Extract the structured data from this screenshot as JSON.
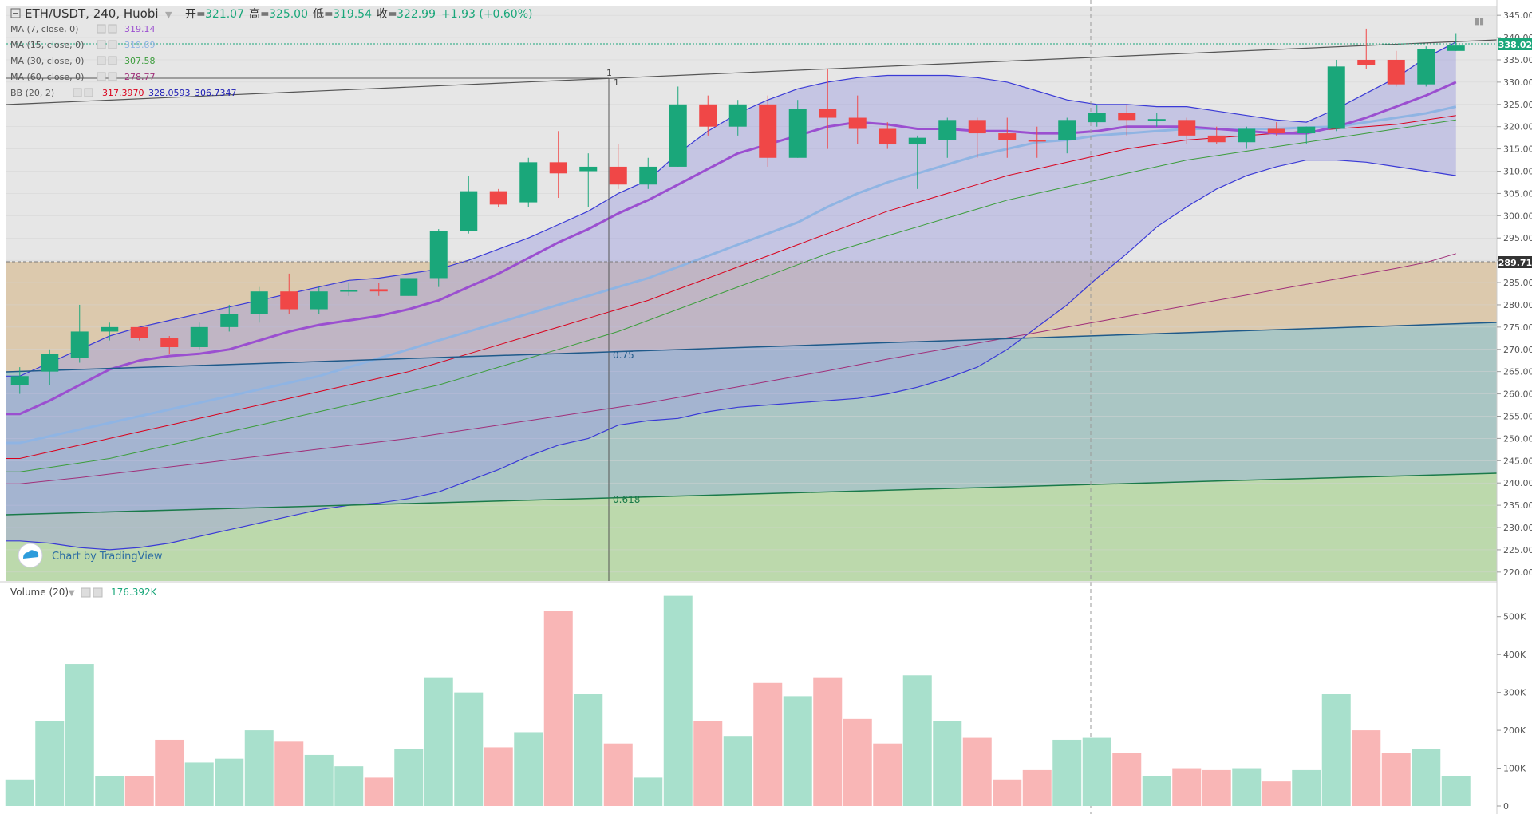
{
  "header": {
    "symbol": "ETH/USDT, 240, Huobi",
    "open_label": "开=",
    "open": "321.07",
    "high_label": "高=",
    "high": "325.00",
    "low_label": "低=",
    "low": "319.54",
    "close_label": "收=",
    "close": "322.99",
    "change": "+1.93 (+0.60%)"
  },
  "indicators": [
    {
      "label": "MA (7, close, 0)",
      "value": "319.14",
      "color": "#9b4fd0"
    },
    {
      "label": "MA (15, close, 0)",
      "value": "319.89",
      "color": "#8fb4e3"
    },
    {
      "label": "MA (30, close, 0)",
      "value": "307.58",
      "color": "#3c9d3c"
    },
    {
      "label": "MA (60, close, 0)",
      "value": "278.77",
      "color": "#a0307a"
    }
  ],
  "bb": {
    "label": "BB (20, 2)",
    "values": [
      "317.3970",
      "328.0593",
      "306.7347"
    ],
    "colors": [
      "#d9001b",
      "#1a1ab3",
      "#1a1ab3"
    ]
  },
  "volume": {
    "label": "Volume (20)",
    "value": "176.392K"
  },
  "watermark": "Chart by TradingView",
  "colors": {
    "up": "#1aa77a",
    "down": "#f04747",
    "up_vol": "#a8e0cc",
    "down_vol": "#f9b6b6",
    "bb_fill": "#b9b9e6",
    "ma7": "#9b4fd0",
    "ma15": "#8fb4e3",
    "ma30": "#3c9d3c",
    "ma60": "#a0307a",
    "bb_mid": "#d9001b",
    "bb_band": "#3a3ad6"
  },
  "price_labels": {
    "last": "338.02",
    "line": "289.71"
  },
  "fib_labels": {
    "top": "1",
    "top2": "1",
    "mid": "0.75",
    "low": "0.618"
  },
  "chart_data": {
    "type": "candlestick",
    "price_axis": {
      "ticks": [
        "345.00",
        "340.00",
        "335.00",
        "330.00",
        "325.00",
        "320.00",
        "315.00",
        "310.00",
        "305.00",
        "300.00",
        "295.00",
        "290.00",
        "285.00",
        "280.00",
        "275.00",
        "270.00",
        "265.00",
        "260.00",
        "255.00",
        "250.00",
        "245.00",
        "240.00",
        "235.00",
        "230.00",
        "225.00",
        "220.00"
      ],
      "ylim": [
        218,
        347
      ]
    },
    "volume_axis": {
      "ticks": [
        "500K",
        "400K",
        "300K",
        "200K",
        "100K",
        "0"
      ],
      "ylim": [
        0,
        550
      ]
    },
    "candles": [
      {
        "o": 262,
        "h": 266,
        "l": 260,
        "c": 264
      },
      {
        "o": 265,
        "h": 270,
        "l": 262,
        "c": 269
      },
      {
        "o": 268,
        "h": 280,
        "l": 267,
        "c": 274
      },
      {
        "o": 274,
        "h": 276,
        "l": 272,
        "c": 275
      },
      {
        "o": 275,
        "h": 275,
        "l": 272,
        "c": 272.5
      },
      {
        "o": 272.5,
        "h": 273,
        "l": 269,
        "c": 270.5
      },
      {
        "o": 270.5,
        "h": 276,
        "l": 270,
        "c": 275
      },
      {
        "o": 275,
        "h": 280,
        "l": 274,
        "c": 278
      },
      {
        "o": 278,
        "h": 284,
        "l": 276,
        "c": 283
      },
      {
        "o": 283,
        "h": 287,
        "l": 278,
        "c": 279
      },
      {
        "o": 279,
        "h": 284,
        "l": 278,
        "c": 283
      },
      {
        "o": 283,
        "h": 285,
        "l": 282,
        "c": 283.3
      },
      {
        "o": 283.5,
        "h": 285,
        "l": 282,
        "c": 283
      },
      {
        "o": 282,
        "h": 286,
        "l": 282,
        "c": 286
      },
      {
        "o": 286,
        "h": 297,
        "l": 284,
        "c": 296.5
      },
      {
        "o": 296.5,
        "h": 309,
        "l": 296,
        "c": 305.5
      },
      {
        "o": 305.5,
        "h": 306,
        "l": 302,
        "c": 302.5
      },
      {
        "o": 303,
        "h": 313,
        "l": 302,
        "c": 312
      },
      {
        "o": 312,
        "h": 319,
        "l": 304,
        "c": 309.5
      },
      {
        "o": 310,
        "h": 314,
        "l": 302,
        "c": 311
      },
      {
        "o": 311,
        "h": 316,
        "l": 306,
        "c": 307
      },
      {
        "o": 307,
        "h": 313,
        "l": 306,
        "c": 311
      },
      {
        "o": 311,
        "h": 329,
        "l": 311,
        "c": 325
      },
      {
        "o": 325,
        "h": 327,
        "l": 318,
        "c": 320
      },
      {
        "o": 320,
        "h": 326,
        "l": 318,
        "c": 325
      },
      {
        "o": 325,
        "h": 327,
        "l": 311,
        "c": 313
      },
      {
        "o": 313,
        "h": 326,
        "l": 313,
        "c": 324
      },
      {
        "o": 324,
        "h": 333,
        "l": 315,
        "c": 322
      },
      {
        "o": 322,
        "h": 327,
        "l": 316,
        "c": 319.5
      },
      {
        "o": 319.5,
        "h": 321,
        "l": 315,
        "c": 316
      },
      {
        "o": 316,
        "h": 318,
        "l": 306,
        "c": 317.5
      },
      {
        "o": 317,
        "h": 322,
        "l": 313,
        "c": 321.5
      },
      {
        "o": 321.5,
        "h": 322,
        "l": 313,
        "c": 318.5
      },
      {
        "o": 318.5,
        "h": 322,
        "l": 313,
        "c": 317
      },
      {
        "o": 317,
        "h": 320,
        "l": 313,
        "c": 316.7
      },
      {
        "o": 317,
        "h": 322,
        "l": 314,
        "c": 321.5
      },
      {
        "o": 321,
        "h": 325,
        "l": 320,
        "c": 323
      },
      {
        "o": 323,
        "h": 325,
        "l": 318,
        "c": 321.5
      },
      {
        "o": 321.5,
        "h": 323,
        "l": 320,
        "c": 321.7
      },
      {
        "o": 321.5,
        "h": 322,
        "l": 316,
        "c": 318
      },
      {
        "o": 318,
        "h": 320,
        "l": 316,
        "c": 316.5
      },
      {
        "o": 316.5,
        "h": 320,
        "l": 315,
        "c": 319.5
      },
      {
        "o": 319.5,
        "h": 321,
        "l": 318,
        "c": 318.5
      },
      {
        "o": 318.5,
        "h": 320,
        "l": 316,
        "c": 320
      },
      {
        "o": 319.5,
        "h": 335,
        "l": 319,
        "c": 333.5
      },
      {
        "o": 335,
        "h": 342,
        "l": 333,
        "c": 333.8
      },
      {
        "o": 335,
        "h": 337,
        "l": 329,
        "c": 329.5
      },
      {
        "o": 329.5,
        "h": 338,
        "l": 329,
        "c": 337.5
      },
      {
        "o": 337,
        "h": 341,
        "l": 337,
        "c": 338.2
      }
    ],
    "ma7": [
      255.5,
      258.5,
      262,
      265.5,
      267.5,
      268.5,
      269,
      270,
      272,
      274,
      275.5,
      276.5,
      277.5,
      279,
      281,
      284,
      287,
      290.5,
      294,
      297,
      300.5,
      303.5,
      307,
      310.5,
      314,
      316,
      318,
      320,
      321,
      320.5,
      319.5,
      319.5,
      319,
      319,
      318.5,
      318.5,
      319,
      320,
      320,
      320,
      319.5,
      319,
      318.5,
      318.5,
      320,
      322,
      324.5,
      327,
      330
    ],
    "ma15": [
      249,
      250.5,
      252,
      253.5,
      255,
      256.5,
      258,
      259.5,
      261,
      262.5,
      264,
      266,
      268,
      270,
      272,
      274,
      276,
      278,
      280,
      282,
      284,
      286,
      288.5,
      291,
      293.5,
      296,
      298.5,
      302,
      305,
      307.5,
      309.5,
      311.5,
      313.5,
      315,
      316.5,
      317,
      318,
      318.5,
      319,
      319.5,
      319.5,
      319.5,
      319.5,
      319.8,
      320,
      321,
      322,
      323,
      324.5
    ],
    "ma30": [
      242.5,
      243.5,
      244.5,
      245.5,
      247,
      248.5,
      250,
      251.5,
      253,
      254.5,
      256,
      257.5,
      259,
      260.5,
      262,
      264,
      266,
      268,
      270,
      272,
      274,
      276.5,
      279,
      281.5,
      284,
      286.5,
      289,
      291.5,
      293.5,
      295.5,
      297.5,
      299.5,
      301.5,
      303.5,
      305,
      306.5,
      308,
      309.5,
      311,
      312.5,
      313.5,
      314.5,
      315.5,
      316.5,
      317.5,
      318.5,
      319.5,
      320.5,
      321.5
    ],
    "ma60": [
      239.8,
      240.5,
      241.2,
      242,
      242.8,
      243.6,
      244.4,
      245.2,
      246,
      246.8,
      247.6,
      248.4,
      249.2,
      250,
      251,
      252,
      253,
      254,
      255,
      256,
      257,
      258,
      259.2,
      260.4,
      261.6,
      262.8,
      264,
      265.2,
      266.5,
      267.8,
      269,
      270.2,
      271.4,
      272.6,
      273.8,
      275,
      276.2,
      277.4,
      278.6,
      279.8,
      281,
      282.2,
      283.4,
      284.6,
      285.8,
      287,
      288.2,
      289.5,
      291.5
    ],
    "bb_mid": [
      245.5,
      247,
      248.5,
      250,
      251.5,
      253,
      254.5,
      256,
      257.5,
      259,
      260.5,
      262,
      263.5,
      265,
      267,
      269,
      271,
      273,
      275,
      277,
      279,
      281,
      283.5,
      286,
      288.5,
      291,
      293.5,
      296,
      298.5,
      301,
      303,
      305,
      307,
      309,
      310.5,
      312,
      313.5,
      315,
      316,
      317,
      317.5,
      318,
      318.5,
      319,
      319.5,
      320,
      320.5,
      321.5,
      322.5
    ],
    "bb_upper": [
      264,
      267,
      270,
      273,
      275,
      276.5,
      278,
      279.5,
      281,
      282.5,
      284,
      285.5,
      286,
      287,
      288,
      290,
      292.5,
      295,
      298,
      301,
      305,
      308,
      314,
      319,
      323,
      326,
      328.5,
      330,
      331,
      331.5,
      331.5,
      331.5,
      331,
      330,
      328,
      326,
      325,
      325,
      324.5,
      324.5,
      323.5,
      322.5,
      321.5,
      321,
      324,
      327.5,
      331,
      335.5,
      339
    ],
    "bb_lower": [
      227,
      226.5,
      225.5,
      225,
      225.5,
      226.5,
      228,
      229.5,
      231,
      232.5,
      234,
      235,
      235.5,
      236.5,
      238,
      240.5,
      243,
      246,
      248.5,
      250,
      253,
      254,
      254.5,
      256,
      257,
      257.5,
      258,
      258.5,
      259,
      260,
      261.5,
      263.5,
      266,
      270,
      275,
      280,
      286,
      291.5,
      297.5,
      302,
      306,
      309,
      311,
      312.5,
      312.5,
      312,
      311,
      310,
      309
    ],
    "volumes": [
      70,
      225,
      375,
      80,
      80,
      175,
      115,
      125,
      200,
      170,
      135,
      105,
      75,
      150,
      340,
      300,
      155,
      195,
      515,
      295,
      165,
      75,
      555,
      225,
      185,
      325,
      290,
      340,
      230,
      165,
      345,
      225,
      180,
      70,
      95,
      175,
      180,
      140,
      80,
      100,
      95,
      100,
      65,
      95,
      295,
      200,
      140,
      150,
      80
    ]
  }
}
